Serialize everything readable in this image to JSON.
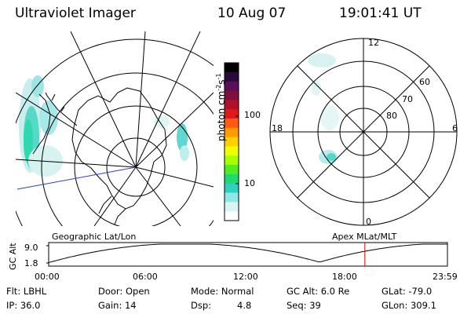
{
  "header": {
    "instrument": "Ultraviolet Imager",
    "date": "10 Aug 07",
    "time": "19:01:41 UT"
  },
  "colorbar": {
    "label_text": "photon cm",
    "label_sup1": "-2",
    "label_s": "s",
    "label_sup2": "-1",
    "tick_high": "100",
    "tick_low": "10",
    "colors": [
      "#000000",
      "#2a0a3a",
      "#5a0f5a",
      "#800f3c",
      "#b0102a",
      "#e01818",
      "#ff5a10",
      "#ff9a00",
      "#ffd000",
      "#f0ff00",
      "#a8ff00",
      "#50ee20",
      "#20d870",
      "#30d0c0",
      "#8ee8e8",
      "#d8f4f4",
      "#ffffff"
    ]
  },
  "geo_map": {
    "label": "Geographic Lat/Lon"
  },
  "polar_map": {
    "label": "Apex MLat/MLT",
    "mlt_top": "12",
    "mlt_left": "18",
    "mlt_right": "6",
    "mlt_bottom": "0",
    "lat_60": "60",
    "lat_70": "70",
    "lat_80": "80"
  },
  "altitude_plot": {
    "ylabel": "GC Alt",
    "ytick_high": "9.0",
    "ytick_low": "1.8",
    "xticks": [
      "00:00",
      "06:00",
      "12:00",
      "18:00",
      "23:59"
    ],
    "current_time_hours": 19.03
  },
  "info": {
    "flt": "Flt: LBHL",
    "ip": "IP: 36.0",
    "door": "Door: Open",
    "gain": "Gain: 14",
    "mode": "Mode: Normal",
    "dsp_label": "Dsp:",
    "dsp_value": "4.8",
    "gc_alt": "GC Alt: 6.0 Re",
    "seq": "Seq: 39",
    "glat": "GLat: -79.0",
    "glon": "GLon: 309.1"
  }
}
